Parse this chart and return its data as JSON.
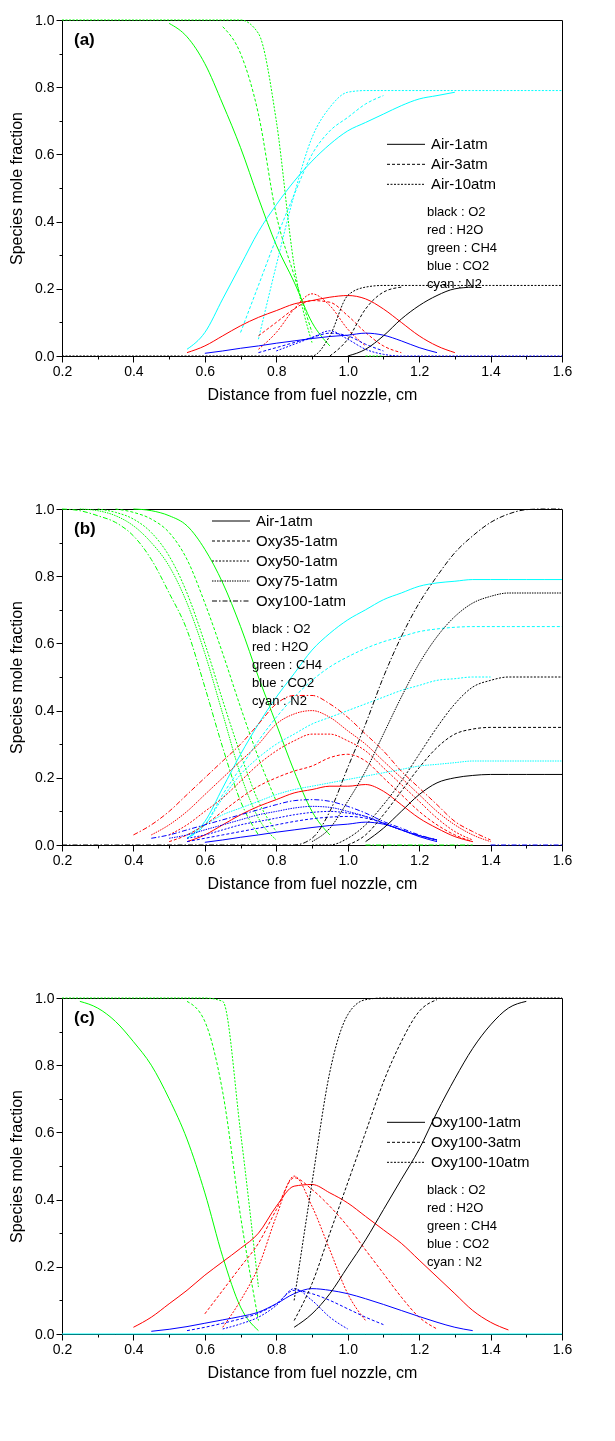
{
  "chart_data": [
    {
      "type": "line",
      "xlabel": "Distance from fuel nozzle, cm",
      "ylabel": "Species mole fraction",
      "legend": "right",
      "annotations": [
        "(a)",
        "black : O2",
        "red : H2O",
        "green : CH4",
        "blue : CO2",
        "cyan : N2"
      ],
      "xlim": [
        0.2,
        1.6
      ],
      "ylim": [
        0,
        1
      ],
      "xticks": [
        0.2,
        {
          "value": 0.3,
          "label": null
        },
        0.4,
        {
          "value": 0.5,
          "label": null
        },
        0.6,
        {
          "value": 0.7,
          "label": null
        },
        0.8,
        {
          "value": 0.9,
          "label": null
        },
        {
          "value": 1.0,
          "label": "1.0"
        },
        {
          "value": 1.1,
          "label": null
        },
        1.2,
        {
          "value": 1.3,
          "label": null
        },
        1.4,
        {
          "value": 1.5,
          "label": null
        },
        1.6
      ],
      "yticks": [
        {
          "value": 0,
          "label": "0.0"
        },
        {
          "value": 0.1,
          "label": null
        },
        0.2,
        {
          "value": 0.3,
          "label": null
        },
        0.4,
        {
          "value": 0.5,
          "label": null
        },
        0.6,
        {
          "value": 0.7,
          "label": null
        },
        0.8,
        {
          "value": 0.9,
          "label": null
        },
        {
          "value": 1.0,
          "label": "1.0"
        }
      ],
      "x": [
        0.2,
        0.25,
        0.3,
        0.35,
        0.4,
        0.45,
        0.5,
        0.55,
        0.6,
        0.65,
        0.7,
        0.75,
        0.8,
        0.85,
        0.9,
        0.95,
        1.0,
        1.05,
        1.1,
        1.15,
        1.2,
        1.25,
        1.3,
        1.35,
        1.4,
        1.45,
        1.5,
        1.55,
        1.6
      ],
      "series": [
        {
          "color": "#00ff00",
          "line_style": "solid",
          "values": [
            null,
            null,
            null,
            null,
            null,
            null,
            0.99,
            0.95,
            0.87,
            0.75,
            0.62,
            0.47,
            0.33,
            0.22,
            0.1,
            0.03,
            null,
            null,
            null,
            null,
            null,
            null,
            null,
            null,
            null,
            null,
            null,
            null,
            null
          ]
        },
        {
          "color": "#00ff00",
          "line_style": "dashed",
          "values": [
            null,
            null,
            null,
            null,
            null,
            null,
            null,
            null,
            null,
            0.98,
            0.9,
            0.72,
            0.42,
            0.24,
            0.07,
            null,
            null,
            null,
            null,
            null,
            null,
            null,
            null,
            null,
            null,
            null,
            null,
            null,
            null
          ]
        },
        {
          "color": "#00ff00",
          "line_style": "dotted",
          "values": [
            1,
            1,
            1,
            1,
            1,
            1,
            1,
            1,
            1,
            1,
            1,
            0.96,
            0.7,
            0.27,
            0.04,
            null,
            null,
            0,
            0,
            null,
            null,
            null,
            null,
            null,
            null,
            null,
            null,
            null,
            null
          ]
        },
        {
          "color": "#00ffff",
          "line_style": "solid",
          "values": [
            null,
            null,
            null,
            null,
            null,
            null,
            null,
            0.02,
            0.07,
            0.17,
            0.27,
            0.37,
            0.45,
            0.52,
            0.58,
            0.63,
            0.67,
            0.695,
            0.72,
            0.745,
            0.765,
            0.775,
            0.785,
            null,
            null,
            null,
            null,
            null,
            null
          ]
        },
        {
          "color": "#00ffff",
          "line_style": "dashed",
          "values": [
            null,
            null,
            null,
            null,
            null,
            null,
            null,
            null,
            null,
            null,
            0.07,
            0.21,
            0.35,
            0.48,
            0.6,
            0.67,
            0.71,
            0.75,
            0.775,
            null,
            null,
            null,
            null,
            null,
            null,
            null,
            null,
            null,
            null
          ]
        },
        {
          "color": "#00ffff",
          "line_style": "dotted",
          "values": [
            null,
            null,
            null,
            null,
            null,
            null,
            null,
            null,
            null,
            null,
            null,
            0.05,
            0.27,
            0.48,
            0.65,
            0.74,
            0.785,
            0.79,
            0.79,
            0.79,
            0.79,
            0.79,
            0.79,
            0.79,
            0.79,
            0.79,
            0.79,
            0.79,
            0.79
          ]
        },
        {
          "color": "#ff0000",
          "line_style": "solid",
          "values": [
            null,
            null,
            null,
            null,
            null,
            null,
            null,
            0.01,
            0.03,
            0.06,
            0.09,
            0.115,
            0.135,
            0.155,
            0.165,
            0.175,
            0.18,
            0.17,
            0.14,
            0.1,
            0.06,
            0.03,
            0.01,
            null,
            null,
            null,
            null,
            null,
            null
          ]
        },
        {
          "color": "#ff0000",
          "line_style": "dashed",
          "values": [
            null,
            null,
            null,
            null,
            null,
            null,
            null,
            null,
            null,
            null,
            null,
            0.06,
            0.1,
            0.14,
            0.165,
            0.16,
            0.12,
            0.07,
            0.03,
            0.01,
            null,
            null,
            null,
            null,
            null,
            null,
            null,
            null,
            null
          ]
        },
        {
          "color": "#ff0000",
          "line_style": "dotted",
          "values": [
            null,
            null,
            null,
            null,
            null,
            null,
            null,
            null,
            null,
            null,
            null,
            0.02,
            0.07,
            0.14,
            0.185,
            0.15,
            0.08,
            0.03,
            null,
            null,
            null,
            null,
            null,
            null,
            null,
            null,
            null,
            null,
            null
          ]
        },
        {
          "color": "#0000ff",
          "line_style": "solid",
          "values": [
            null,
            null,
            null,
            null,
            null,
            null,
            null,
            null,
            0.008,
            0.015,
            0.023,
            0.03,
            0.038,
            0.045,
            0.052,
            0.058,
            0.062,
            0.068,
            0.062,
            0.045,
            0.025,
            0.01,
            null,
            null,
            null,
            null,
            null,
            null,
            null
          ]
        },
        {
          "color": "#0000ff",
          "line_style": "dashed",
          "values": [
            null,
            null,
            null,
            null,
            null,
            null,
            null,
            null,
            null,
            null,
            null,
            0.01,
            0.025,
            0.04,
            0.055,
            0.068,
            0.06,
            0.035,
            0.015,
            null,
            null,
            null,
            null,
            null,
            null,
            null,
            null,
            null,
            null
          ]
        },
        {
          "color": "#0000ff",
          "line_style": "dotted",
          "values": [
            null,
            null,
            null,
            null,
            null,
            null,
            null,
            null,
            null,
            null,
            null,
            null,
            0.015,
            0.035,
            0.055,
            0.075,
            0.05,
            0.02,
            0.005,
            0,
            0,
            0,
            0,
            0,
            0,
            0,
            0,
            0,
            0
          ]
        },
        {
          "name": "Air-1atm",
          "color": "#000000",
          "line_style": "solid",
          "values": [
            null,
            null,
            null,
            null,
            null,
            null,
            null,
            null,
            null,
            null,
            null,
            null,
            null,
            null,
            null,
            null,
            0,
            0.02,
            0.06,
            0.11,
            0.15,
            0.18,
            0.2,
            0.205,
            null,
            null,
            null,
            null,
            null
          ]
        },
        {
          "name": "Air-3atm",
          "color": "#000000",
          "line_style": "dashed",
          "values": [
            null,
            null,
            null,
            null,
            null,
            null,
            null,
            null,
            null,
            null,
            null,
            null,
            null,
            null,
            null,
            0,
            0.05,
            0.14,
            0.19,
            0.205,
            null,
            null,
            null,
            null,
            null,
            null,
            null,
            null,
            null
          ]
        },
        {
          "name": "Air-10atm",
          "color": "#000000",
          "line_style": "dotted",
          "values": [
            0,
            0,
            0,
            0,
            0,
            0,
            0,
            0,
            0,
            0,
            0,
            0,
            0,
            0,
            0,
            0.06,
            0.18,
            0.205,
            0.21,
            0.21,
            0.21,
            0.21,
            0.21,
            0.21,
            0.21,
            0.21,
            0.21,
            0.21,
            0.21
          ]
        }
      ]
    },
    {
      "type": "line",
      "xlabel": "Distance from fuel nozzle, cm",
      "ylabel": "Species mole fraction",
      "legend": "top",
      "annotations": [
        "(b)",
        "black : O2",
        "red : H2O",
        "green : CH4",
        "blue : CO2",
        "cyan : N2"
      ],
      "xlim": [
        0.2,
        1.6
      ],
      "ylim": [
        0,
        1
      ],
      "xticks": [
        0.2,
        {
          "value": 0.3,
          "label": null
        },
        0.4,
        {
          "value": 0.5,
          "label": null
        },
        0.6,
        {
          "value": 0.7,
          "label": null
        },
        0.8,
        {
          "value": 0.9,
          "label": null
        },
        {
          "value": 1.0,
          "label": "1.0"
        },
        {
          "value": 1.1,
          "label": null
        },
        1.2,
        {
          "value": 1.3,
          "label": null
        },
        1.4,
        {
          "value": 1.5,
          "label": null
        },
        1.6
      ],
      "yticks": [
        {
          "value": 0,
          "label": "0.0"
        },
        {
          "value": 0.1,
          "label": null
        },
        0.2,
        {
          "value": 0.3,
          "label": null
        },
        0.4,
        {
          "value": 0.5,
          "label": null
        },
        0.6,
        {
          "value": 0.7,
          "label": null
        },
        0.8,
        {
          "value": 0.9,
          "label": null
        },
        {
          "value": 1.0,
          "label": "1.0"
        }
      ],
      "x": [
        0.2,
        0.25,
        0.3,
        0.35,
        0.4,
        0.45,
        0.5,
        0.55,
        0.6,
        0.65,
        0.7,
        0.75,
        0.8,
        0.85,
        0.9,
        0.95,
        1.0,
        1.05,
        1.1,
        1.15,
        1.2,
        1.25,
        1.3,
        1.35,
        1.4,
        1.45,
        1.5,
        1.55,
        1.6
      ],
      "series": [
        {
          "color": "#00ff00",
          "line_style": "solid",
          "values": [
            null,
            null,
            null,
            null,
            1,
            0.995,
            0.98,
            0.95,
            0.88,
            0.78,
            0.65,
            0.5,
            0.36,
            0.22,
            0.1,
            0.03,
            null,
            null,
            null,
            null,
            null,
            null,
            null,
            null,
            null,
            null,
            null,
            null,
            null
          ]
        },
        {
          "color": "#00ff00",
          "line_style": "dashed",
          "values": [
            null,
            null,
            null,
            1,
            0.99,
            0.97,
            0.93,
            0.85,
            0.72,
            0.57,
            0.41,
            0.26,
            0.13,
            null,
            null,
            null,
            null,
            null,
            null,
            null,
            null,
            null,
            null,
            null,
            null,
            null,
            null,
            null,
            null
          ]
        },
        {
          "color": "#00ff00",
          "line_style": "dotted",
          "values": [
            null,
            null,
            1,
            0.99,
            0.97,
            0.93,
            0.86,
            0.75,
            0.6,
            0.43,
            0.27,
            0.13,
            0.04,
            null,
            null,
            null,
            null,
            null,
            null,
            null,
            null,
            null,
            null,
            null,
            null,
            null,
            null,
            null,
            null
          ]
        },
        {
          "color": "#00ff00",
          "line_style": "finedotted",
          "values": [
            null,
            1,
            0.995,
            0.98,
            0.95,
            0.9,
            0.83,
            0.72,
            0.57,
            0.39,
            0.21,
            0.08,
            0.015,
            null,
            null,
            null,
            null,
            null,
            null,
            null,
            null,
            null,
            null,
            null,
            null,
            null,
            null,
            null,
            null
          ]
        },
        {
          "color": "#00ff00",
          "line_style": "dashdot",
          "values": [
            1,
            0.995,
            0.98,
            0.96,
            0.92,
            0.85,
            0.75,
            0.64,
            0.47,
            0.29,
            0.13,
            0.03,
            null,
            null,
            null,
            null,
            null,
            0,
            0,
            0,
            0,
            0,
            0,
            0,
            null,
            null,
            null,
            null,
            null
          ]
        },
        {
          "color": "#00ffff",
          "line_style": "solid",
          "values": [
            null,
            null,
            null,
            null,
            null,
            null,
            null,
            0.02,
            0.07,
            0.17,
            0.27,
            0.36,
            0.44,
            0.51,
            0.58,
            0.63,
            0.67,
            0.7,
            0.73,
            0.75,
            0.77,
            0.78,
            0.785,
            0.79,
            0.79,
            0.79,
            0.79,
            0.79,
            0.79
          ]
        },
        {
          "color": "#00ffff",
          "line_style": "dashed",
          "values": [
            null,
            null,
            null,
            null,
            null,
            null,
            null,
            0.02,
            0.06,
            0.15,
            0.23,
            0.31,
            0.38,
            0.44,
            0.49,
            0.53,
            0.56,
            0.585,
            0.605,
            0.62,
            0.635,
            0.643,
            0.648,
            0.65,
            0.65,
            0.65,
            0.65,
            0.65,
            0.65
          ]
        },
        {
          "color": "#00ffff",
          "line_style": "dotted",
          "values": [
            null,
            null,
            null,
            null,
            null,
            null,
            null,
            0.02,
            0.06,
            0.14,
            0.21,
            0.26,
            0.3,
            0.33,
            0.36,
            0.38,
            0.4,
            0.42,
            0.44,
            0.46,
            0.475,
            0.49,
            0.495,
            0.5,
            0.5,
            null,
            null,
            null,
            null
          ]
        },
        {
          "color": "#00ffff",
          "line_style": "finedotted",
          "values": [
            null,
            null,
            null,
            null,
            null,
            null,
            null,
            0.03,
            0.06,
            0.09,
            0.11,
            0.13,
            0.15,
            0.165,
            0.175,
            0.185,
            0.195,
            0.205,
            0.215,
            0.225,
            0.235,
            0.24,
            0.245,
            0.25,
            0.25,
            0.25,
            0.25,
            0.25,
            0.25
          ]
        },
        {
          "color": "#ff0000",
          "line_style": "solid",
          "values": [
            null,
            null,
            null,
            null,
            null,
            null,
            null,
            0.01,
            0.03,
            0.06,
            0.09,
            0.115,
            0.135,
            0.155,
            0.165,
            0.175,
            0.175,
            0.18,
            0.16,
            0.12,
            0.08,
            0.05,
            0.025,
            0.01,
            null,
            null,
            null,
            null,
            null
          ]
        },
        {
          "color": "#ff0000",
          "line_style": "dashed",
          "values": [
            null,
            null,
            null,
            null,
            null,
            null,
            0.01,
            0.03,
            0.06,
            0.1,
            0.14,
            0.175,
            0.2,
            0.22,
            0.235,
            0.26,
            0.27,
            0.25,
            0.2,
            0.15,
            0.1,
            0.06,
            0.03,
            0.01,
            null,
            null,
            null,
            null,
            null
          ]
        },
        {
          "color": "#ff0000",
          "line_style": "dotted",
          "values": [
            null,
            null,
            null,
            null,
            null,
            null,
            0.03,
            0.06,
            0.1,
            0.14,
            0.19,
            0.24,
            0.28,
            0.31,
            0.33,
            0.33,
            0.31,
            0.28,
            0.23,
            0.18,
            0.13,
            0.08,
            0.04,
            0.015,
            null,
            null,
            null,
            null,
            null
          ]
        },
        {
          "color": "#ff0000",
          "line_style": "finedotted",
          "values": [
            null,
            null,
            null,
            null,
            null,
            0.03,
            0.06,
            0.1,
            0.15,
            0.2,
            0.25,
            0.3,
            0.36,
            0.39,
            0.4,
            0.38,
            0.34,
            0.3,
            0.25,
            0.2,
            0.15,
            0.1,
            0.06,
            0.03,
            0.01,
            null,
            null,
            null,
            null
          ]
        },
        {
          "color": "#ff0000",
          "line_style": "dashdot",
          "values": [
            null,
            null,
            null,
            null,
            0.03,
            0.06,
            0.1,
            0.15,
            0.2,
            0.25,
            0.3,
            0.36,
            0.42,
            0.445,
            0.445,
            0.42,
            0.38,
            0.33,
            0.28,
            0.22,
            0.17,
            0.12,
            0.07,
            0.04,
            0.015,
            null,
            null,
            null,
            null
          ]
        },
        {
          "color": "#0000ff",
          "line_style": "solid",
          "values": [
            null,
            null,
            null,
            null,
            null,
            null,
            null,
            null,
            0.008,
            0.015,
            0.023,
            0.03,
            0.038,
            0.045,
            0.052,
            0.058,
            0.062,
            0.068,
            0.062,
            0.045,
            0.025,
            0.01,
            null,
            null,
            null,
            null,
            null,
            null,
            null
          ]
        },
        {
          "color": "#0000ff",
          "line_style": "dashed",
          "values": [
            null,
            null,
            null,
            null,
            null,
            null,
            null,
            0.01,
            0.02,
            0.03,
            0.04,
            0.05,
            0.06,
            0.07,
            0.078,
            0.083,
            0.085,
            0.08,
            0.065,
            0.045,
            0.028,
            0.015,
            null,
            null,
            null,
            null,
            null,
            null,
            null
          ]
        },
        {
          "color": "#0000ff",
          "line_style": "dotted",
          "values": [
            null,
            null,
            null,
            null,
            null,
            null,
            null,
            0.02,
            0.03,
            0.045,
            0.06,
            0.07,
            0.08,
            0.09,
            0.097,
            0.1,
            0.095,
            0.085,
            0.065,
            0.045,
            0.028,
            0.015,
            null,
            null,
            null,
            null,
            null,
            null,
            null
          ]
        },
        {
          "color": "#0000ff",
          "line_style": "finedotted",
          "values": [
            null,
            null,
            null,
            null,
            null,
            null,
            0.02,
            0.03,
            0.045,
            0.06,
            0.075,
            0.09,
            0.1,
            0.11,
            0.115,
            0.112,
            0.1,
            0.085,
            0.065,
            0.045,
            0.028,
            0.015,
            null,
            null,
            null,
            null,
            null,
            null,
            null
          ]
        },
        {
          "color": "#0000ff",
          "line_style": "dashdot",
          "values": [
            null,
            null,
            null,
            null,
            null,
            0.02,
            0.03,
            0.045,
            0.06,
            0.075,
            0.09,
            0.105,
            0.12,
            0.132,
            0.135,
            0.13,
            0.115,
            0.095,
            0.07,
            0.05,
            0.03,
            0.015,
            null,
            null,
            0,
            0,
            0,
            0,
            0
          ]
        },
        {
          "name": "Air-1atm",
          "color": "#000000",
          "line_style": "solid",
          "values": [
            null,
            null,
            null,
            null,
            null,
            null,
            null,
            null,
            null,
            null,
            null,
            null,
            null,
            null,
            null,
            null,
            null,
            0.01,
            0.05,
            0.1,
            0.15,
            0.185,
            0.2,
            0.207,
            0.21,
            0.21,
            0.21,
            0.21,
            0.21
          ]
        },
        {
          "name": "Oxy35-1atm",
          "color": "#000000",
          "line_style": "dashed",
          "values": [
            null,
            null,
            null,
            null,
            null,
            null,
            null,
            null,
            null,
            null,
            null,
            null,
            null,
            null,
            null,
            null,
            0,
            0.03,
            0.09,
            0.16,
            0.23,
            0.29,
            0.33,
            0.345,
            0.35,
            0.35,
            0.35,
            0.35,
            0.35
          ]
        },
        {
          "name": "Oxy50-1atm",
          "color": "#000000",
          "line_style": "dotted",
          "values": [
            null,
            null,
            null,
            null,
            null,
            null,
            null,
            null,
            null,
            null,
            null,
            null,
            null,
            null,
            0,
            0,
            0.02,
            0.06,
            0.12,
            0.19,
            0.27,
            0.35,
            0.42,
            0.47,
            0.49,
            0.5,
            0.5,
            0.5,
            0.5
          ]
        },
        {
          "name": "Oxy75-1atm",
          "color": "#000000",
          "line_style": "finedotted",
          "values": [
            null,
            null,
            null,
            null,
            null,
            null,
            null,
            null,
            null,
            null,
            null,
            null,
            null,
            null,
            0.01,
            0.05,
            0.13,
            0.22,
            0.33,
            0.44,
            0.54,
            0.62,
            0.68,
            0.72,
            0.74,
            0.75,
            0.75,
            0.75,
            0.75
          ]
        },
        {
          "name": "Oxy100-1atm",
          "color": "#000000",
          "line_style": "dashdot",
          "values": [
            0,
            0,
            0,
            0,
            0,
            0,
            0,
            0,
            0,
            0,
            0,
            0,
            0,
            0,
            0.02,
            0.1,
            0.23,
            0.36,
            0.5,
            0.62,
            0.72,
            0.8,
            0.87,
            0.92,
            0.96,
            0.985,
            0.998,
            1,
            1
          ]
        }
      ]
    },
    {
      "type": "line",
      "xlabel": "Distance from fuel nozzle, cm",
      "ylabel": "Species mole fraction",
      "legend": "right",
      "annotations": [
        "(c)",
        "black : O2",
        "red : H2O",
        "green : CH4",
        "blue : CO2",
        "cyan : N2"
      ],
      "xlim": [
        0.2,
        1.6
      ],
      "ylim": [
        0,
        1
      ],
      "xticks": [
        0.2,
        {
          "value": 0.3,
          "label": null
        },
        0.4,
        {
          "value": 0.5,
          "label": null
        },
        0.6,
        {
          "value": 0.7,
          "label": null
        },
        0.8,
        {
          "value": 0.9,
          "label": null
        },
        {
          "value": 1.0,
          "label": "1.0"
        },
        {
          "value": 1.1,
          "label": null
        },
        1.2,
        {
          "value": 1.3,
          "label": null
        },
        1.4,
        {
          "value": 1.5,
          "label": null
        },
        1.6
      ],
      "yticks": [
        {
          "value": 0,
          "label": "0.0"
        },
        {
          "value": 0.1,
          "label": null
        },
        0.2,
        {
          "value": 0.3,
          "label": null
        },
        0.4,
        {
          "value": 0.5,
          "label": null
        },
        0.6,
        {
          "value": 0.7,
          "label": null
        },
        0.8,
        {
          "value": 0.9,
          "label": null
        },
        {
          "value": 1.0,
          "label": "1.0"
        }
      ],
      "x": [
        0.2,
        0.25,
        0.3,
        0.35,
        0.4,
        0.45,
        0.5,
        0.55,
        0.6,
        0.65,
        0.7,
        0.75,
        0.8,
        0.85,
        0.9,
        0.95,
        1.0,
        1.05,
        1.1,
        1.15,
        1.2,
        1.25,
        1.3,
        1.35,
        1.4,
        1.45,
        1.5,
        1.55,
        1.6
      ],
      "series": [
        {
          "color": "#00ff00",
          "line_style": "solid",
          "values": [
            null,
            0.99,
            0.97,
            0.93,
            0.87,
            0.8,
            0.7,
            0.58,
            0.42,
            0.23,
            0.08,
            0.01,
            null,
            null,
            null,
            null,
            null,
            null,
            null,
            null,
            null,
            null,
            null,
            null,
            null,
            null,
            null,
            null,
            null
          ]
        },
        {
          "color": "#00ff00",
          "line_style": "dashed",
          "values": [
            null,
            null,
            null,
            null,
            null,
            null,
            null,
            0.99,
            0.93,
            0.72,
            0.35,
            0.04,
            null,
            null,
            null,
            null,
            null,
            null,
            null,
            null,
            null,
            null,
            null,
            null,
            null,
            null,
            null,
            null,
            null
          ]
        },
        {
          "color": "#00ff00",
          "line_style": "dotted",
          "values": [
            1,
            1,
            1,
            1,
            1,
            1,
            1,
            1,
            1,
            0.99,
            0.6,
            0.14,
            null,
            null,
            null,
            null,
            null,
            null,
            null,
            null,
            null,
            null,
            null,
            null,
            null,
            null,
            null,
            null,
            null
          ]
        },
        {
          "color": "#ff0000",
          "line_style": "solid",
          "values": [
            null,
            null,
            null,
            null,
            0.02,
            0.05,
            0.09,
            0.13,
            0.175,
            0.215,
            0.255,
            0.3,
            0.38,
            0.44,
            0.445,
            0.42,
            0.39,
            0.35,
            0.31,
            0.27,
            0.22,
            0.17,
            0.12,
            0.07,
            0.035,
            0.012,
            null,
            null,
            null
          ]
        },
        {
          "color": "#ff0000",
          "line_style": "dashed",
          "values": [
            null,
            null,
            null,
            null,
            null,
            null,
            null,
            null,
            0.06,
            0.13,
            0.2,
            0.27,
            0.37,
            0.465,
            0.43,
            0.38,
            0.32,
            0.25,
            0.18,
            0.11,
            0.05,
            0.015,
            null,
            null,
            null,
            null,
            null,
            null,
            null
          ]
        },
        {
          "color": "#ff0000",
          "line_style": "dotted",
          "values": [
            null,
            null,
            null,
            null,
            null,
            null,
            null,
            null,
            null,
            0.02,
            0.1,
            0.2,
            0.35,
            0.47,
            0.38,
            0.25,
            0.12,
            0.04,
            null,
            null,
            null,
            null,
            null,
            null,
            null,
            null,
            null,
            null,
            null
          ]
        },
        {
          "color": "#0000ff",
          "line_style": "solid",
          "values": [
            null,
            null,
            null,
            null,
            null,
            0.008,
            0.014,
            0.022,
            0.032,
            0.042,
            0.052,
            0.065,
            0.09,
            0.12,
            0.135,
            0.13,
            0.12,
            0.105,
            0.088,
            0.07,
            0.052,
            0.035,
            0.02,
            0.01,
            null,
            null,
            null,
            null,
            null
          ]
        },
        {
          "color": "#0000ff",
          "line_style": "dashed",
          "values": [
            null,
            null,
            null,
            null,
            null,
            null,
            null,
            0.01,
            0.02,
            0.032,
            0.045,
            0.062,
            0.09,
            0.13,
            0.12,
            0.1,
            0.075,
            0.05,
            0.028,
            null,
            null,
            null,
            null,
            null,
            null,
            null,
            null,
            null,
            null
          ]
        },
        {
          "color": "#0000ff",
          "line_style": "dotted",
          "values": [
            null,
            null,
            null,
            null,
            null,
            null,
            null,
            null,
            null,
            0.015,
            0.03,
            0.05,
            0.085,
            0.135,
            0.1,
            0.05,
            0.015,
            null,
            null,
            null,
            null,
            null,
            null,
            null,
            null,
            null,
            null,
            null,
            null
          ]
        },
        {
          "name": "Oxy100-1atm",
          "color": "#000000",
          "line_style": "solid",
          "values": [
            null,
            null,
            null,
            null,
            null,
            null,
            null,
            null,
            null,
            null,
            null,
            null,
            null,
            0.02,
            0.06,
            0.12,
            0.2,
            0.28,
            0.37,
            0.46,
            0.55,
            0.66,
            0.76,
            0.85,
            0.92,
            0.97,
            0.99,
            null,
            null
          ]
        },
        {
          "name": "Oxy100-3atm",
          "color": "#000000",
          "line_style": "dashed",
          "values": [
            null,
            null,
            null,
            null,
            null,
            null,
            null,
            null,
            null,
            null,
            null,
            null,
            null,
            0.04,
            0.15,
            0.3,
            0.45,
            0.6,
            0.75,
            0.87,
            0.96,
            0.995,
            null,
            null,
            null,
            null,
            null,
            null,
            null
          ]
        },
        {
          "name": "Oxy100-10atm",
          "color": "#000000",
          "line_style": "dotted",
          "values": [
            null,
            null,
            null,
            null,
            null,
            null,
            null,
            null,
            null,
            null,
            null,
            null,
            null,
            0.1,
            0.45,
            0.78,
            0.95,
            0.995,
            1,
            1,
            1,
            1,
            1,
            1,
            1,
            1,
            1,
            1,
            1
          ]
        },
        {
          "color": "#00ffff",
          "line_style": "solid",
          "values": [
            0,
            0,
            0,
            0,
            0,
            0,
            0,
            0,
            0,
            0,
            0,
            0,
            0,
            0,
            0,
            0,
            0,
            0,
            0,
            0,
            0,
            0,
            0,
            0,
            0,
            0,
            0,
            0,
            0
          ]
        }
      ]
    }
  ]
}
